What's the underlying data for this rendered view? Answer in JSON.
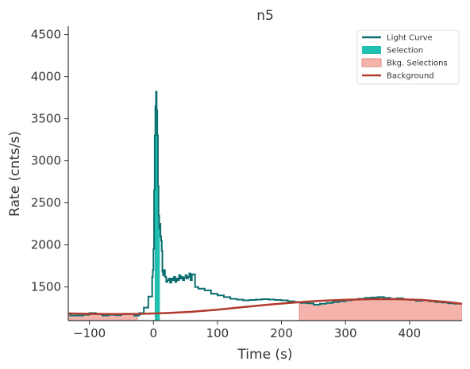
{
  "chart_data": {
    "type": "line",
    "title": "n5",
    "xlabel": "Time (s)",
    "ylabel": "Rate (cnts/s)",
    "xlim": [
      -133,
      482
    ],
    "ylim": [
      1100,
      4600
    ],
    "xticks": [
      -100,
      0,
      100,
      200,
      300,
      400
    ],
    "xtick_labels": [
      "−100",
      "0",
      "100",
      "200",
      "300",
      "400"
    ],
    "yticks": [
      1500,
      2000,
      2500,
      3000,
      3500,
      4000,
      4500
    ],
    "ytick_labels": [
      "1500",
      "2000",
      "2500",
      "3000",
      "3500",
      "4000",
      "4500"
    ],
    "grid": false,
    "legend_position": "top-right",
    "colors": {
      "light_curve": "#0b6e6e",
      "selection": "#20bfb0",
      "bkg_selection": "#f4b4ac",
      "bkg_selection_edge": "#e08b80",
      "background": "#b03a2e",
      "axis": "#333333"
    },
    "legend": [
      {
        "label": "Light Curve",
        "kind": "line",
        "color_key": "light_curve"
      },
      {
        "label": "Selection",
        "kind": "patch",
        "color_key": "selection"
      },
      {
        "label": "Bkg. Selections",
        "kind": "patch",
        "color_key": "bkg_selection"
      },
      {
        "label": "Background",
        "kind": "line",
        "color_key": "background"
      }
    ],
    "selection": {
      "x_start": 2,
      "x_end": 10
    },
    "bkg_selections": [
      {
        "x_start": -133,
        "x_end": -25
      },
      {
        "x_start": 228,
        "x_end": 482
      }
    ],
    "light_curve": {
      "x": [
        -133,
        -130,
        -110,
        -100,
        -90,
        -80,
        -70,
        -60,
        -50,
        -40,
        -30,
        -22,
        -15,
        -8,
        -2,
        -1,
        0,
        1,
        2,
        3,
        4,
        5,
        6,
        7,
        8,
        9,
        10,
        11,
        12,
        13,
        14,
        15,
        16,
        18,
        20,
        22,
        24,
        26,
        28,
        30,
        32,
        34,
        36,
        38,
        40,
        42,
        44,
        46,
        48,
        50,
        52,
        54,
        56,
        58,
        60,
        65,
        70,
        80,
        90,
        100,
        110,
        120,
        130,
        140,
        150,
        160,
        170,
        180,
        190,
        200,
        210,
        220,
        230,
        240,
        250,
        260,
        270,
        280,
        290,
        300,
        310,
        320,
        330,
        340,
        350,
        360,
        370,
        380,
        390,
        400,
        410,
        420,
        430,
        440,
        450,
        460,
        470,
        482
      ],
      "y": [
        1180,
        1160,
        1170,
        1190,
        1175,
        1160,
        1170,
        1165,
        1175,
        1180,
        1160,
        1190,
        1255,
        1385,
        1620,
        1700,
        1950,
        2650,
        3300,
        3650,
        3820,
        3600,
        3300,
        2700,
        2350,
        2200,
        2250,
        2100,
        2050,
        1930,
        1680,
        1640,
        1700,
        1620,
        1560,
        1580,
        1600,
        1550,
        1600,
        1580,
        1620,
        1560,
        1600,
        1580,
        1640,
        1600,
        1620,
        1580,
        1610,
        1640,
        1600,
        1620,
        1660,
        1580,
        1650,
        1500,
        1480,
        1460,
        1420,
        1400,
        1380,
        1360,
        1350,
        1340,
        1345,
        1350,
        1355,
        1350,
        1345,
        1340,
        1330,
        1320,
        1310,
        1305,
        1290,
        1300,
        1310,
        1320,
        1330,
        1340,
        1350,
        1360,
        1370,
        1375,
        1380,
        1370,
        1360,
        1365,
        1350,
        1345,
        1335,
        1340,
        1330,
        1320,
        1315,
        1305,
        1300,
        1295
      ]
    },
    "background": {
      "x": [
        -133,
        -100,
        -60,
        -20,
        20,
        60,
        100,
        140,
        180,
        220,
        260,
        300,
        340,
        380,
        420,
        460,
        482
      ],
      "y": [
        1185,
        1180,
        1178,
        1180,
        1190,
        1205,
        1230,
        1260,
        1290,
        1315,
        1335,
        1348,
        1355,
        1355,
        1345,
        1320,
        1300
      ]
    }
  }
}
